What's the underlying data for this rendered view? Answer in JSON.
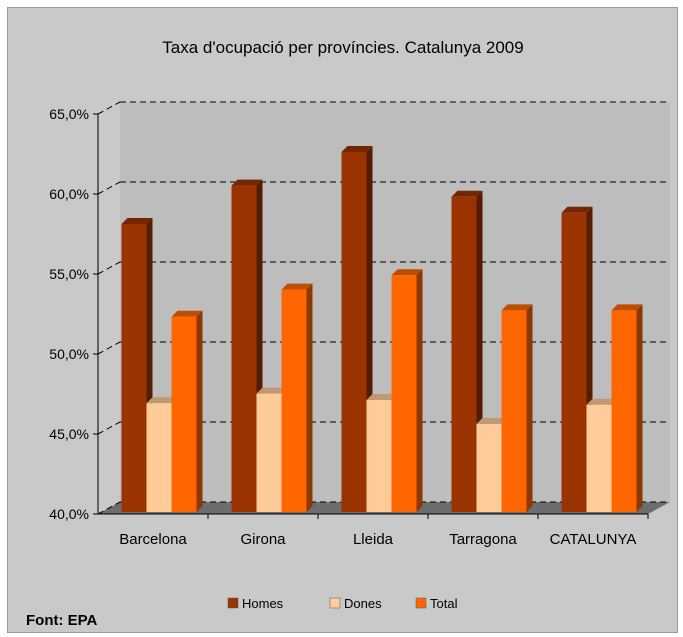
{
  "chart_data": {
    "type": "bar",
    "title": "Taxa d'ocupació per províncies. Catalunya 2009",
    "categories": [
      "Barcelona",
      "Girona",
      "Lleida",
      "Tarragona",
      "CATALUNYA"
    ],
    "series": [
      {
        "name": "Homes",
        "values": [
          58.0,
          60.4,
          62.5,
          59.7,
          58.7
        ],
        "color": "#9a3300"
      },
      {
        "name": "Dones",
        "values": [
          46.8,
          47.4,
          47.0,
          45.5,
          46.7
        ],
        "color": "#ffcc99"
      },
      {
        "name": "Total",
        "values": [
          52.2,
          53.9,
          54.8,
          52.6,
          52.6
        ],
        "color": "#ff6600"
      }
    ],
    "yticks": [
      "40,0%",
      "45,0%",
      "50,0%",
      "55,0%",
      "60,0%",
      "65,0%"
    ],
    "ylim": [
      40,
      65
    ],
    "grid": true,
    "legend_position": "bottom",
    "source": "Font: EPA"
  }
}
